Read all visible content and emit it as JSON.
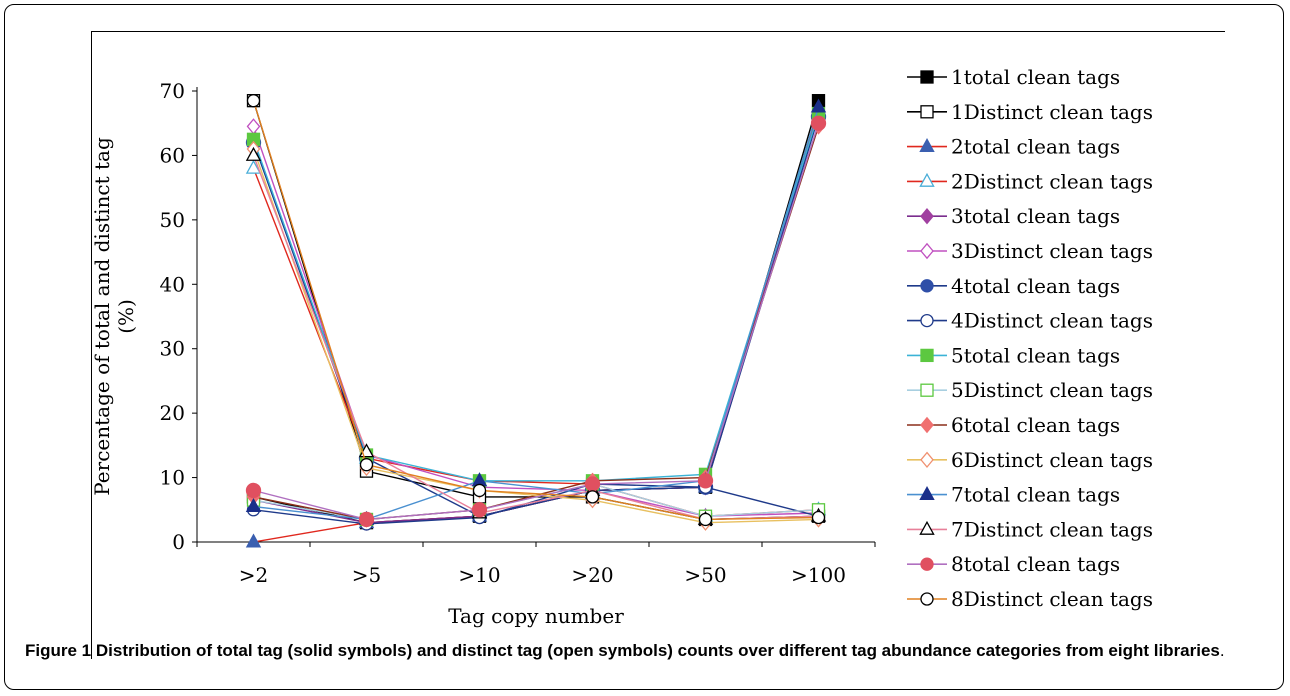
{
  "caption": {
    "label": "Figure 1",
    "text": "Distribution of total tag (solid symbols) and distinct tag (open symbols) counts over different tag abundance categories from eight libraries",
    "end": "."
  },
  "chart_data": {
    "type": "line",
    "xlabel": "Tag copy number",
    "ylabel": "Percentage of total and distinct tag (%)",
    "categories": [
      ">2",
      ">5",
      ">10",
      ">20",
      ">50",
      ">100"
    ],
    "ylim": [
      0,
      70
    ],
    "yticks": [
      0,
      10,
      20,
      30,
      40,
      50,
      60,
      70
    ],
    "grid": false,
    "legend_position": "right",
    "series": [
      {
        "name": "1total clean tags",
        "color": "#000000",
        "marker": "square",
        "filled": true,
        "values": [
          7,
          3,
          4,
          8,
          8.5,
          68.5
        ]
      },
      {
        "name": "1Distinct clean tags",
        "color": "#000000",
        "marker": "square",
        "filled": false,
        "values": [
          68.5,
          11,
          7,
          7,
          3.5,
          4
        ]
      },
      {
        "name": "2total clean tags",
        "color": "#e0281e",
        "marker": "triangle",
        "filled": true,
        "fillColor": "#3a5fb0",
        "values": [
          0,
          3,
          4,
          8,
          8.5,
          67
        ]
      },
      {
        "name": "2Distinct clean tags",
        "color": "#e0281e",
        "marker": "triangle",
        "filled": false,
        "strokeColor": "#4aaed8",
        "values": [
          58,
          13,
          9.5,
          9,
          4,
          5
        ]
      },
      {
        "name": "3total clean tags",
        "color": "#7b2d8e",
        "marker": "diamond",
        "filled": true,
        "fillColor": "#a040a0",
        "values": [
          6.5,
          3,
          4,
          8,
          8.5,
          66.5
        ]
      },
      {
        "name": "3Distinct clean tags",
        "color": "#c050c0",
        "marker": "diamond",
        "filled": false,
        "values": [
          64.5,
          13.5,
          8.5,
          8,
          4,
          4.5
        ]
      },
      {
        "name": "4total clean tags",
        "color": "#1f3a8a",
        "marker": "circle",
        "filled": true,
        "fillColor": "#2f4fa8",
        "values": [
          62,
          13,
          4,
          8,
          8.5,
          66
        ]
      },
      {
        "name": "4Distinct clean tags",
        "color": "#1f3a8a",
        "marker": "circle",
        "filled": false,
        "values": [
          5,
          2.8,
          3.8,
          9,
          8.5,
          4
        ]
      },
      {
        "name": "5total clean tags",
        "color": "#3bb3d6",
        "marker": "square",
        "filled": true,
        "fillColor": "#5cc840",
        "values": [
          62.5,
          13.5,
          9.5,
          9.5,
          10.5,
          66.5
        ]
      },
      {
        "name": "5Distinct clean tags",
        "color": "#a8cfe0",
        "marker": "square",
        "filled": false,
        "strokeColor": "#5cc840",
        "values": [
          6.5,
          3.5,
          5,
          9,
          4,
          5
        ]
      },
      {
        "name": "6total clean tags",
        "color": "#8b2f1a",
        "marker": "diamond",
        "filled": true,
        "fillColor": "#f07070",
        "values": [
          7,
          3.5,
          5,
          9.5,
          10,
          64.5
        ]
      },
      {
        "name": "6Distinct clean tags",
        "color": "#e8c060",
        "marker": "diamond",
        "filled": false,
        "strokeColor": "#f09070",
        "values": [
          61,
          11.5,
          8,
          6.5,
          3,
          3.5
        ]
      },
      {
        "name": "7total clean tags",
        "color": "#4a90d0",
        "marker": "triangle",
        "filled": true,
        "fillColor": "#1a2f8a",
        "values": [
          5.5,
          3.5,
          9.5,
          7.5,
          9.5,
          67.5
        ]
      },
      {
        "name": "7Distinct clean tags",
        "color": "#e8809a",
        "marker": "triangle",
        "filled": false,
        "strokeColor": "#000000",
        "values": [
          60,
          14,
          4.5,
          8,
          3.5,
          4
        ]
      },
      {
        "name": "8total clean tags",
        "color": "#b070c0",
        "marker": "circle",
        "filled": true,
        "fillColor": "#e05060",
        "values": [
          8,
          3.5,
          5,
          9,
          9.5,
          65
        ]
      },
      {
        "name": "8Distinct clean tags",
        "color": "#e08020",
        "marker": "circle",
        "filled": false,
        "strokeColor": "#000000",
        "values": [
          68.5,
          12,
          8,
          7,
          3.5,
          3.8
        ]
      }
    ]
  }
}
